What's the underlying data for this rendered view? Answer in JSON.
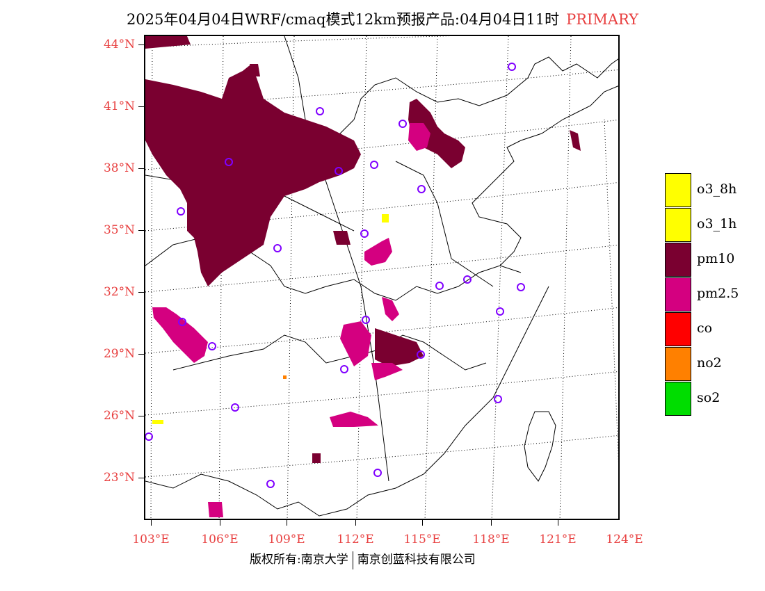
{
  "title": {
    "main": "2025年04月04日WRF/cmaq模式12km预报产品:04月04日11时",
    "pollutant": "PRIMARY"
  },
  "axes": {
    "lat_labels": [
      "44°N",
      "41°N",
      "38°N",
      "35°N",
      "32°N",
      "29°N",
      "26°N",
      "23°N"
    ],
    "lon_labels": [
      "103°E",
      "106°E",
      "109°E",
      "112°E",
      "115°E",
      "118°E",
      "121°E",
      "124°E"
    ]
  },
  "legend": {
    "items": [
      {
        "label": "o3_8h",
        "color": "#ffff00"
      },
      {
        "label": "o3_1h",
        "color": "#ffff00"
      },
      {
        "label": "pm10",
        "color": "#7a0030"
      },
      {
        "label": "pm2.5",
        "color": "#d40080"
      },
      {
        "label": "co",
        "color": "#ff0000"
      },
      {
        "label": "no2",
        "color": "#ff8000"
      },
      {
        "label": "so2",
        "color": "#00dd00"
      }
    ]
  },
  "footer": {
    "left": "版权所有:南京大学",
    "right": "南京创蓝科技有限公司"
  },
  "colors": {
    "pm10": "#7a0030",
    "pm25": "#d40080",
    "o3": "#ffff00",
    "no2": "#ff8000",
    "station": "#8000ff",
    "axis_label": "#e84040"
  }
}
